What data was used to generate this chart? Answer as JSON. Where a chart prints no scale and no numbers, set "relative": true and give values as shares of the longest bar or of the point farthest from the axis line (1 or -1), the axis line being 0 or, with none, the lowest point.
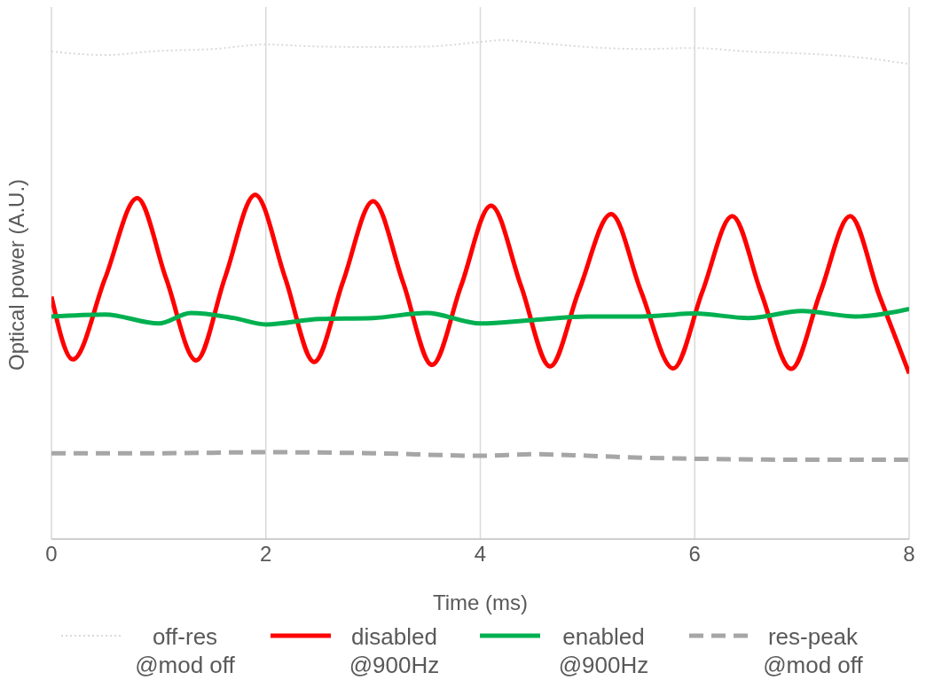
{
  "chart_data": {
    "type": "line",
    "xlabel": "Time (ms)",
    "ylabel": "Optical power (A.U.)",
    "relative": true,
    "xlim": [
      0,
      8
    ],
    "xticks": [
      0,
      2,
      4,
      6,
      8
    ],
    "grid": "x",
    "legend": "bottom",
    "marker": "none",
    "series": [
      {
        "name": "off-res @mod off",
        "color": "#d9d9d9",
        "line_style": "dotted",
        "x": [
          0,
          0.5,
          1,
          1.5,
          2,
          2.5,
          3,
          3.5,
          4,
          4.2,
          4.5,
          5,
          5.5,
          6,
          6.5,
          7,
          7.5,
          8
        ],
        "values": [
          0.977,
          0.97,
          0.978,
          0.982,
          0.991,
          0.987,
          0.986,
          0.987,
          0.996,
          1,
          0.995,
          0.986,
          0.982,
          0.984,
          0.977,
          0.973,
          0.966,
          0.952
        ]
      },
      {
        "name": "disabled @900Hz",
        "color": "#ff0000",
        "line_style": "solid",
        "x": [
          0,
          0.2,
          0.5,
          0.8,
          1.07,
          1.35,
          1.62,
          1.9,
          2.18,
          2.45,
          2.72,
          3.0,
          3.28,
          3.55,
          3.82,
          4.1,
          4.38,
          4.65,
          4.92,
          5.22,
          5.5,
          5.8,
          6.07,
          6.35,
          6.62,
          6.9,
          7.17,
          7.45,
          7.72,
          8
        ],
        "values": [
          0.486,
          0.36,
          0.522,
          0.683,
          0.522,
          0.358,
          0.525,
          0.69,
          0.523,
          0.355,
          0.516,
          0.677,
          0.514,
          0.349,
          0.507,
          0.668,
          0.507,
          0.346,
          0.498,
          0.651,
          0.496,
          0.342,
          0.495,
          0.647,
          0.493,
          0.341,
          0.493,
          0.647,
          0.489,
          0.332
        ]
      },
      {
        "name": "enabled @900Hz",
        "color": "#00b050",
        "line_style": "solid",
        "x": [
          0,
          0.5,
          1,
          1.3,
          1.7,
          2,
          2.5,
          3,
          3.5,
          4,
          4.5,
          5,
          5.5,
          6,
          6.5,
          7,
          7.5,
          8
        ],
        "values": [
          0.446,
          0.45,
          0.432,
          0.453,
          0.443,
          0.43,
          0.441,
          0.443,
          0.453,
          0.432,
          0.439,
          0.446,
          0.446,
          0.452,
          0.443,
          0.457,
          0.446,
          0.461
        ]
      },
      {
        "name": "res-peak @mod off",
        "color": "#a6a6a6",
        "line_style": "dashed",
        "x": [
          0,
          1,
          2,
          3,
          4,
          4.5,
          5,
          5.5,
          6,
          7,
          8
        ],
        "values": [
          0.172,
          0.172,
          0.174,
          0.172,
          0.167,
          0.17,
          0.167,
          0.163,
          0.161,
          0.159,
          0.159
        ]
      }
    ]
  }
}
